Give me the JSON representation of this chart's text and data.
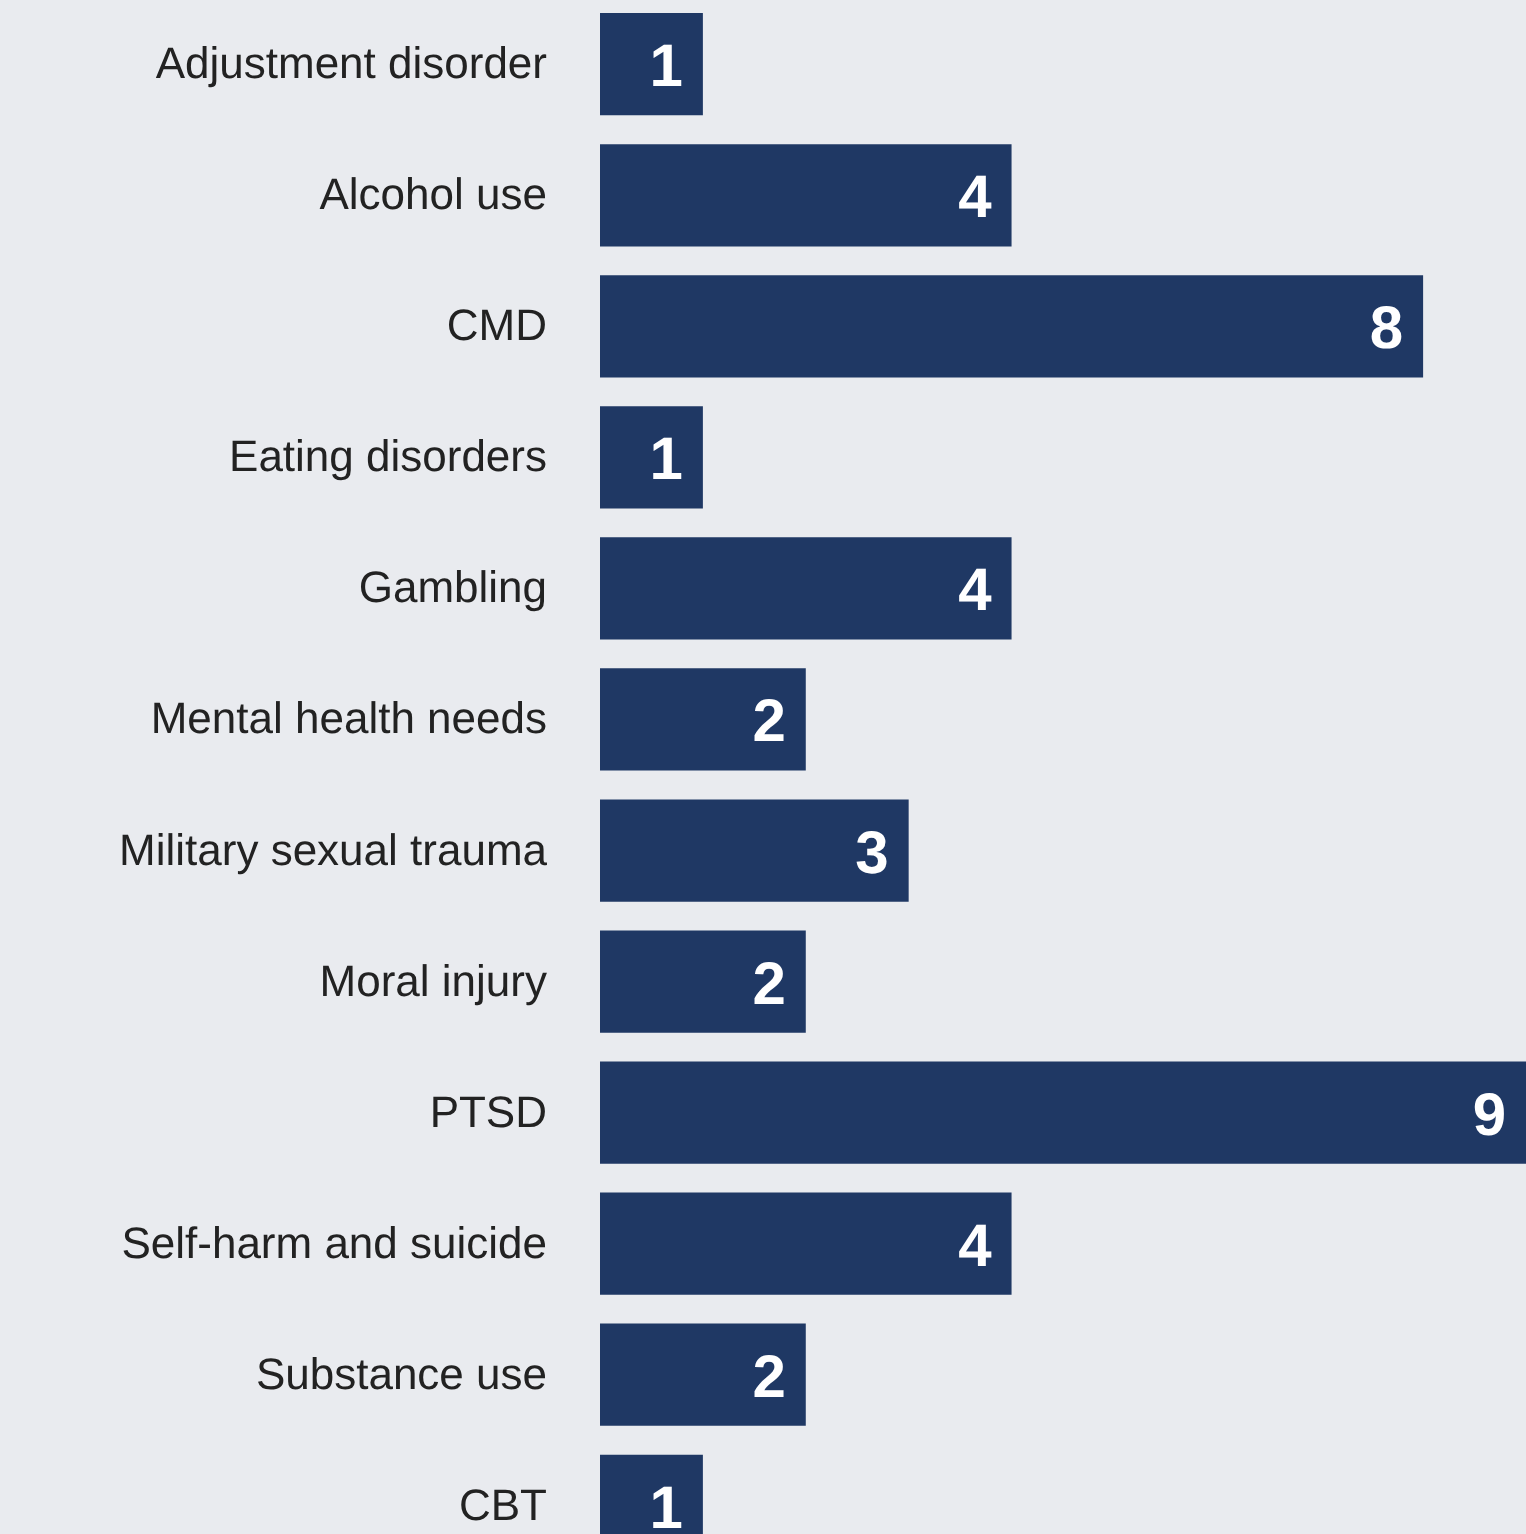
{
  "chart_data": {
    "type": "bar",
    "orientation": "horizontal",
    "categories": [
      "Adjustment disorder",
      "Alcohol use",
      "CMD",
      "Eating disorders",
      "Gambling",
      "Mental health needs",
      "Military sexual trauma",
      "Moral injury",
      "PTSD",
      "Self-harm and suicide",
      "Substance use",
      "CBT"
    ],
    "values": [
      1,
      4,
      8,
      1,
      4,
      2,
      3,
      2,
      9,
      4,
      2,
      1
    ],
    "color": "#1f3864",
    "data_labels": true,
    "xlim": [
      0,
      9
    ]
  }
}
